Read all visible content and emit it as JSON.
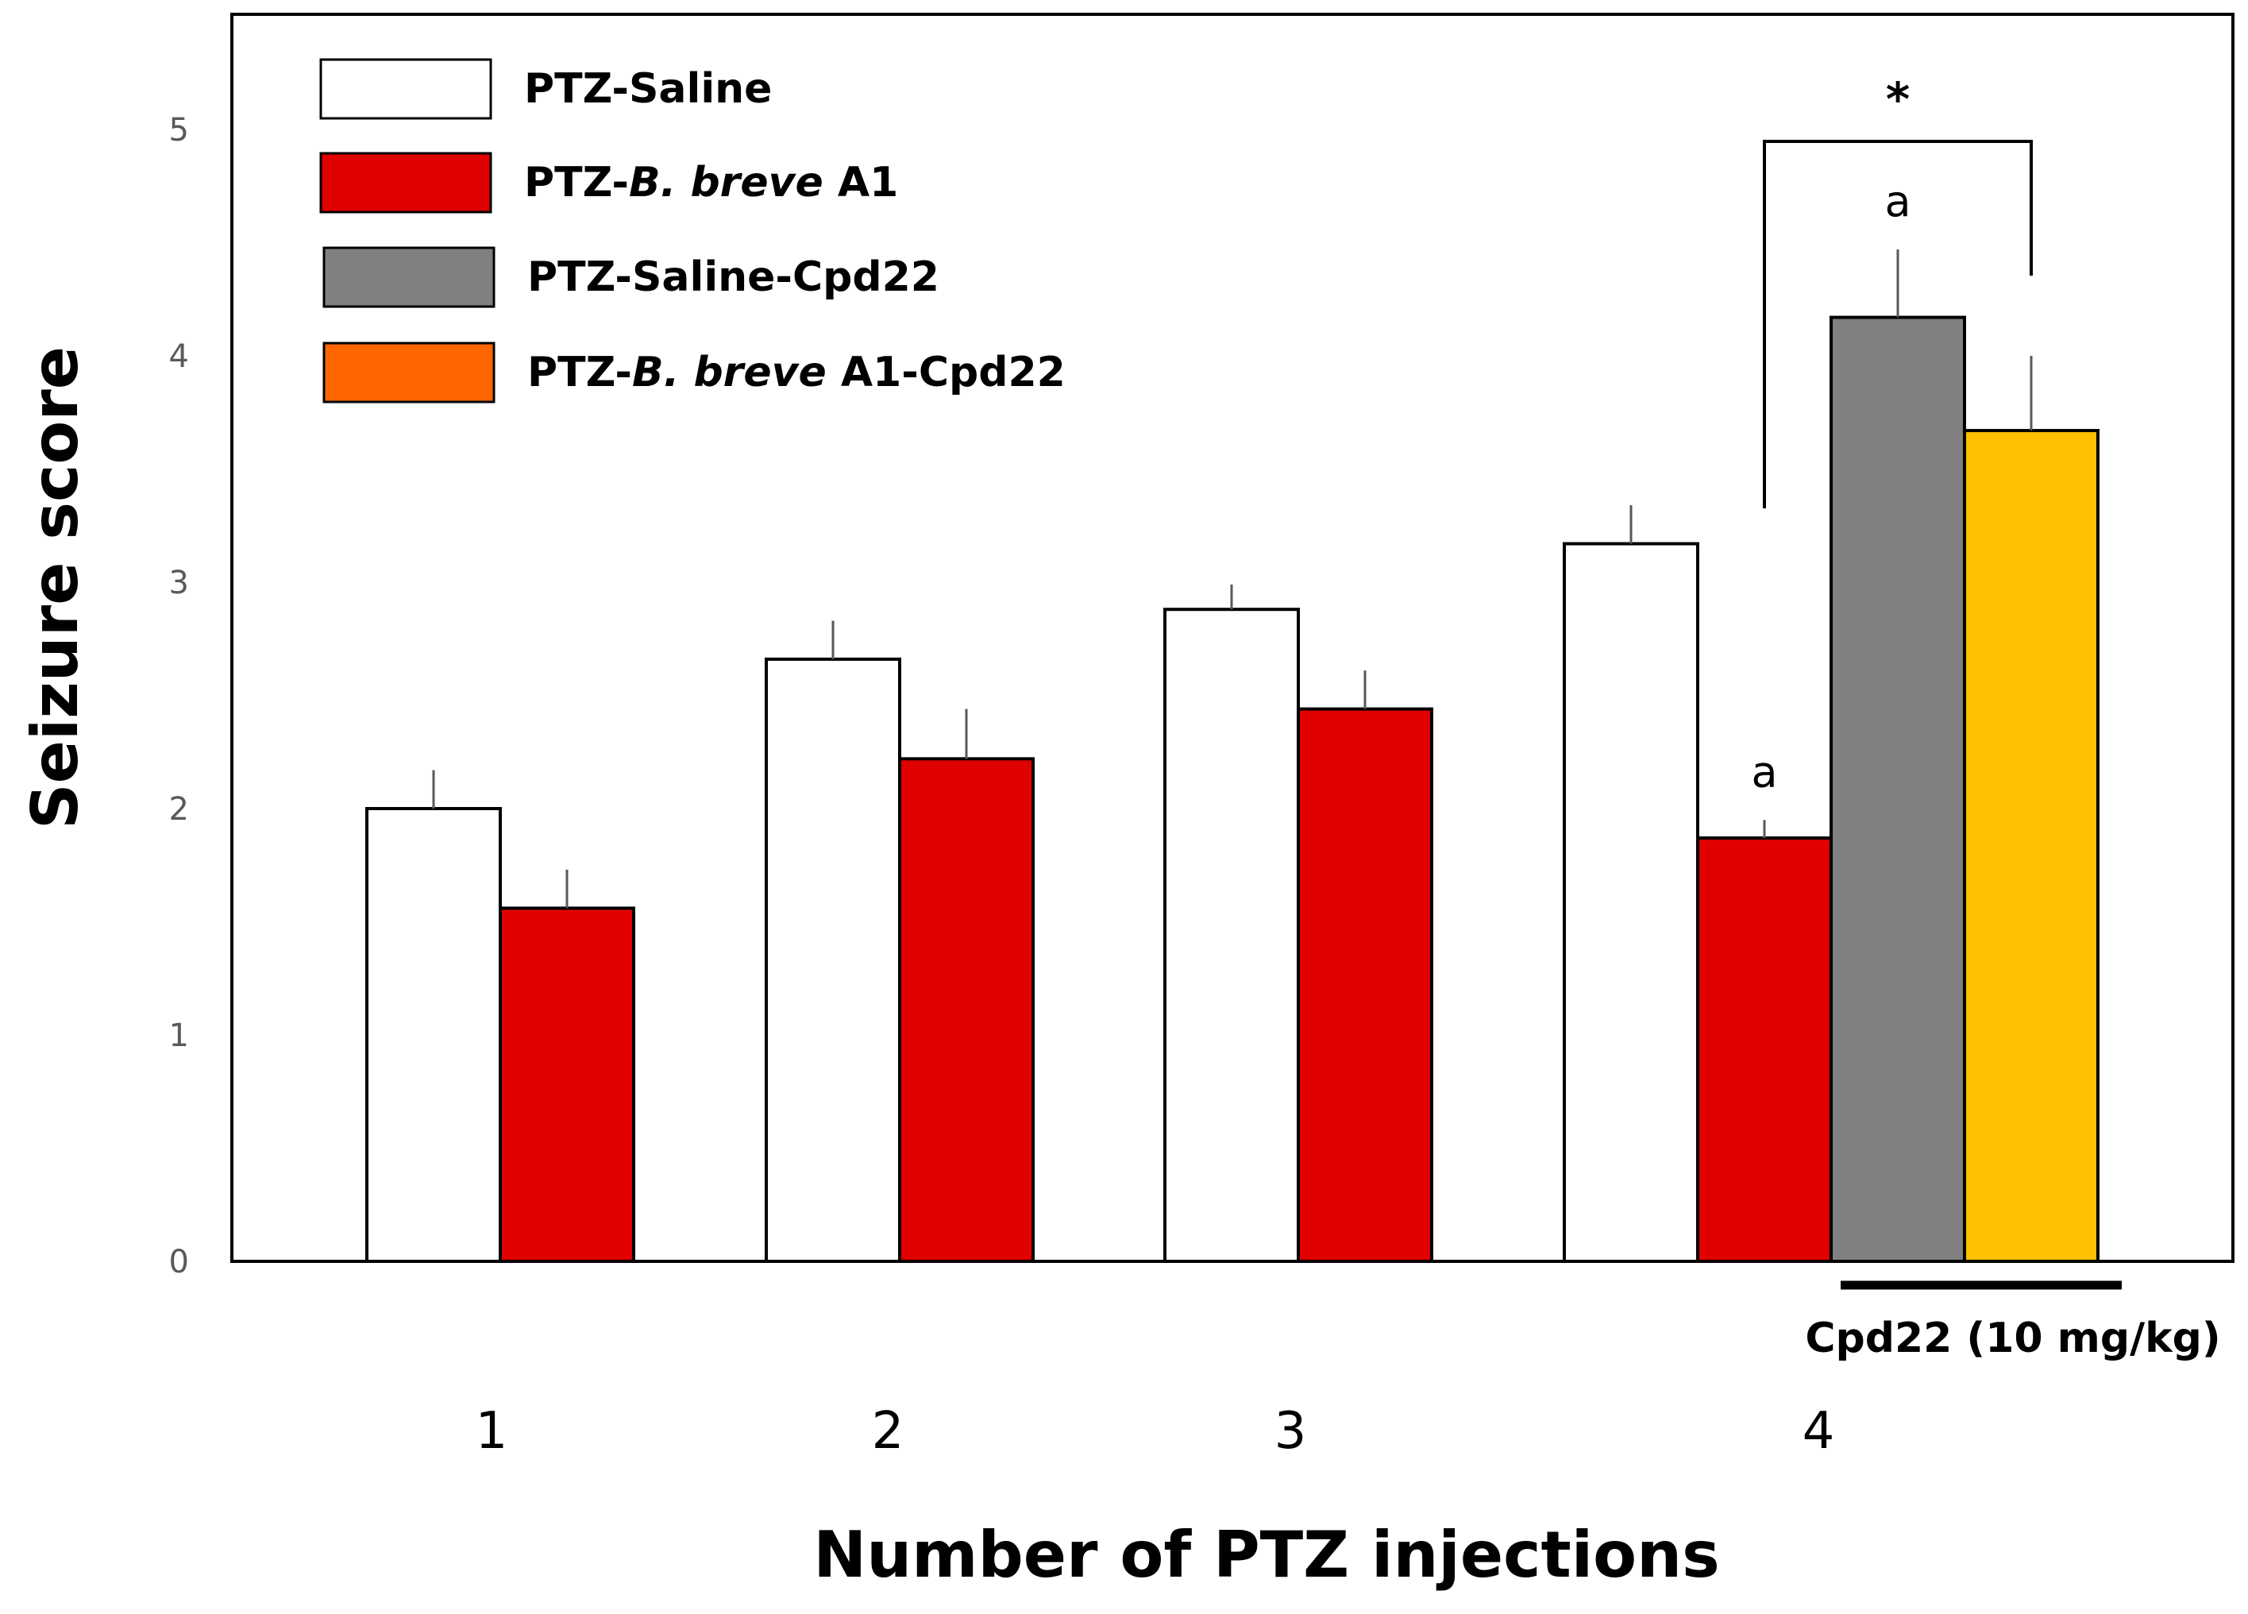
{
  "chart_data": {
    "type": "bar",
    "title": "",
    "xlabel": "Number of PTZ injections",
    "ylabel": "Seizure score",
    "ylim": [
      0,
      5.5
    ],
    "yticks": [
      0,
      1,
      2,
      3,
      4,
      5
    ],
    "categories": [
      "1",
      "2",
      "3",
      "4"
    ],
    "series": [
      {
        "name_plain": "PTZ-Saline",
        "name_parts": [
          {
            "t": "PTZ-Saline",
            "i": false
          }
        ],
        "color": "#ffffff",
        "values": [
          2.0,
          2.66,
          2.88,
          3.17
        ],
        "errors": [
          0.17,
          0.17,
          0.11,
          0.17
        ]
      },
      {
        "name_plain": "PTZ-B. breve A1",
        "name_parts": [
          {
            "t": "PTZ-",
            "i": false
          },
          {
            "t": "B. breve",
            "i": true
          },
          {
            "t": " A1",
            "i": false
          }
        ],
        "color": "#e00000",
        "values": [
          1.56,
          2.22,
          2.44,
          1.87
        ],
        "errors": [
          0.17,
          0.22,
          0.17,
          0.08
        ]
      },
      {
        "name_plain": "PTZ-Saline-Cpd22",
        "name_parts": [
          {
            "t": "PTZ-Saline-Cpd22",
            "i": false
          }
        ],
        "color": "#808080",
        "values": [
          null,
          null,
          null,
          4.17
        ],
        "errors": [
          null,
          null,
          null,
          0.3
        ]
      },
      {
        "name_plain": "PTZ-B. breve A1-Cpd22",
        "name_parts": [
          {
            "t": "PTZ-",
            "i": false
          },
          {
            "t": "B. breve",
            "i": true
          },
          {
            "t": " A1-Cpd22",
            "i": false
          }
        ],
        "color": "#ff6600",
        "bar_color": "#ffc000",
        "values": [
          null,
          null,
          null,
          3.67
        ],
        "errors": [
          null,
          null,
          null,
          0.33
        ]
      }
    ],
    "annotations": [
      {
        "text": "a",
        "category": "4",
        "series": 1
      },
      {
        "text": "a",
        "category": "4",
        "series": 2
      }
    ],
    "significance": {
      "text": "*",
      "category": "4",
      "from_series": 1,
      "to_series": 3
    },
    "treatment_bar": {
      "label": "Cpd22 (10 mg/kg)",
      "category": "4",
      "from_series": 2,
      "to_series": 3
    },
    "legend_position": "top-left",
    "grid": false
  }
}
